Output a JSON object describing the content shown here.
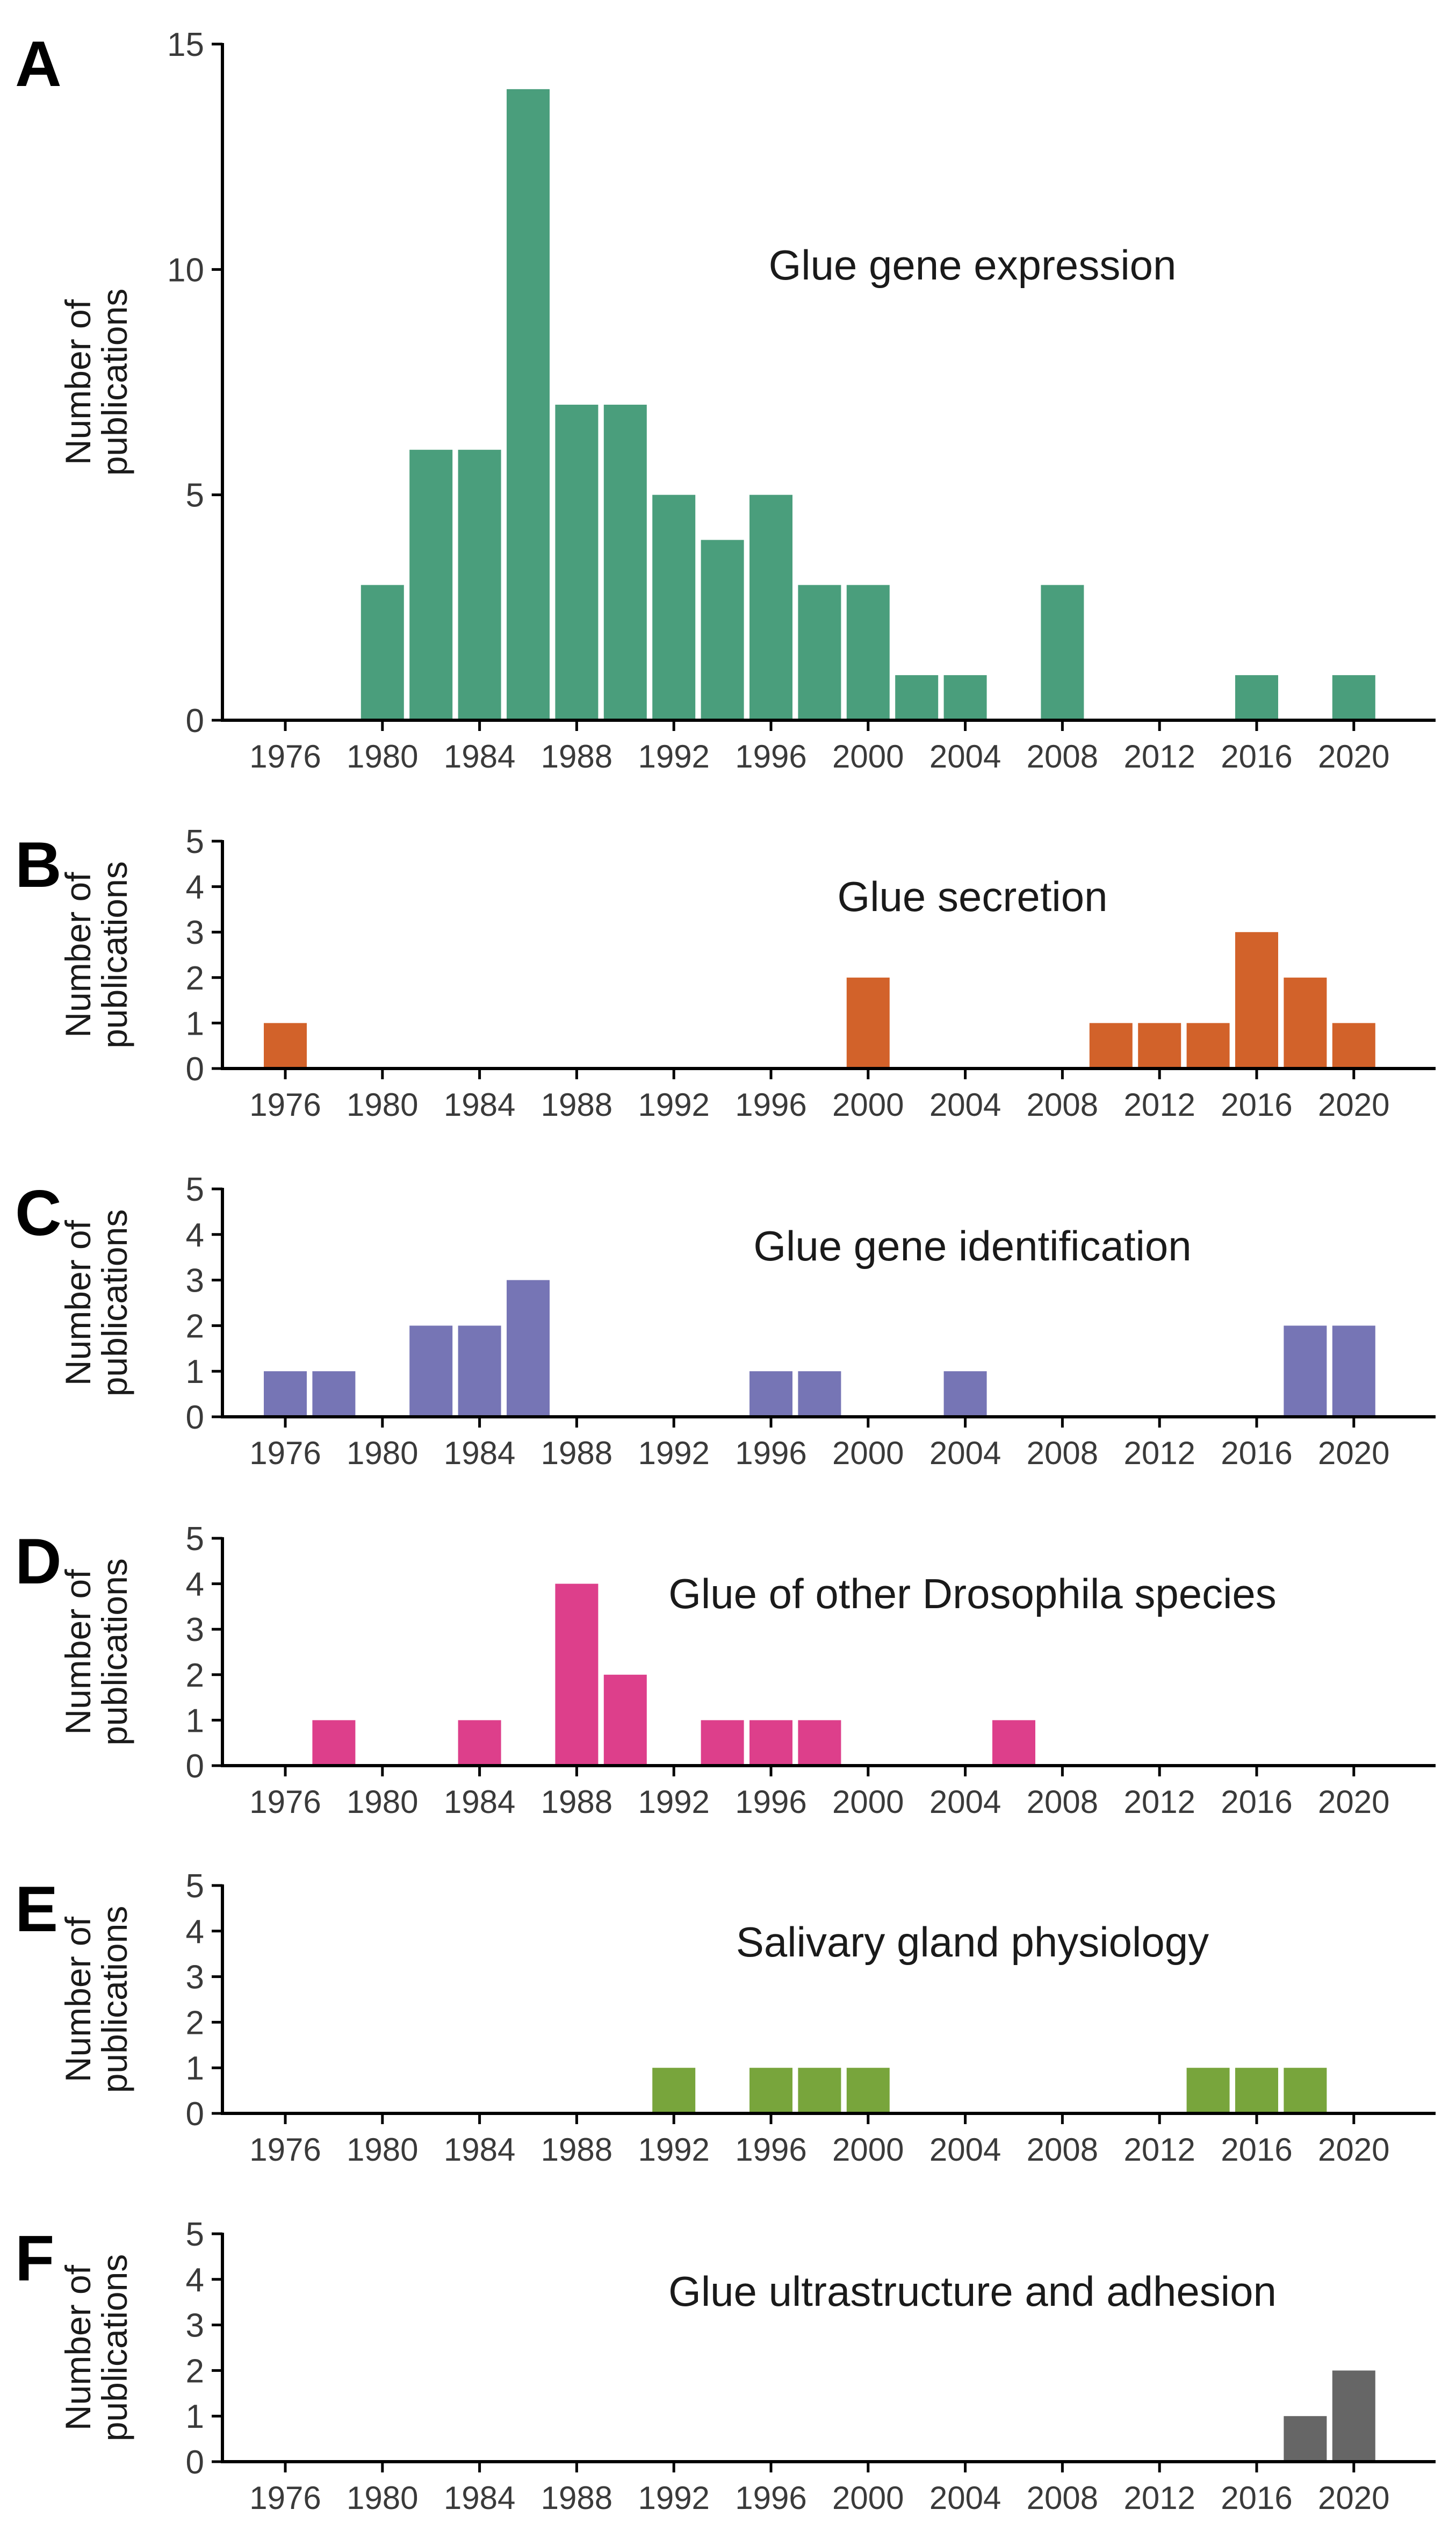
{
  "chart_data": [
    {
      "panel": "A",
      "type": "bar",
      "title": "Glue gene expression",
      "ylabel": [
        "Number of",
        "publications"
      ],
      "xlabel": "",
      "color": "#4a9e7c",
      "ylim": [
        0,
        15
      ],
      "yticks": [
        0,
        5,
        10,
        15
      ],
      "xticks": [
        1976,
        1980,
        1984,
        1988,
        1992,
        1996,
        2000,
        2004,
        2008,
        2012,
        2016,
        2020
      ],
      "x": [
        1980,
        1982,
        1984,
        1986,
        1988,
        1990,
        1992,
        1994,
        1996,
        1998,
        2000,
        2002,
        2004,
        2008,
        2016,
        2020
      ],
      "values": [
        3,
        6,
        6,
        14,
        7,
        7,
        5,
        4,
        5,
        3,
        3,
        1,
        1,
        3,
        1,
        1
      ]
    },
    {
      "panel": "B",
      "type": "bar",
      "title": "Glue secretion",
      "ylabel": [
        "Number of",
        "publications"
      ],
      "xlabel": "",
      "color": "#d2622a",
      "ylim": [
        0,
        5
      ],
      "yticks": [
        0,
        1,
        2,
        3,
        4,
        5
      ],
      "xticks": [
        1976,
        1980,
        1984,
        1988,
        1992,
        1996,
        2000,
        2004,
        2008,
        2012,
        2016,
        2020
      ],
      "x": [
        1976,
        2000,
        2010,
        2012,
        2014,
        2016,
        2018,
        2020
      ],
      "values": [
        1,
        2,
        1,
        1,
        1,
        3,
        2,
        1
      ]
    },
    {
      "panel": "C",
      "type": "bar",
      "title": "Glue gene identification",
      "ylabel": [
        "Number of",
        "publications"
      ],
      "xlabel": "",
      "color": "#7675b5",
      "ylim": [
        0,
        5
      ],
      "yticks": [
        0,
        1,
        2,
        3,
        4,
        5
      ],
      "xticks": [
        1976,
        1980,
        1984,
        1988,
        1992,
        1996,
        2000,
        2004,
        2008,
        2012,
        2016,
        2020
      ],
      "x": [
        1976,
        1978,
        1982,
        1984,
        1986,
        1996,
        1998,
        2004,
        2018,
        2020
      ],
      "values": [
        1,
        1,
        2,
        2,
        3,
        1,
        1,
        1,
        2,
        2
      ]
    },
    {
      "panel": "D",
      "type": "bar",
      "title": "Glue of other Drosophila species",
      "ylabel": [
        "Number of",
        "publications"
      ],
      "xlabel": "",
      "color": "#dd3f8b",
      "ylim": [
        0,
        5
      ],
      "yticks": [
        0,
        1,
        2,
        3,
        4,
        5
      ],
      "xticks": [
        1976,
        1980,
        1984,
        1988,
        1992,
        1996,
        2000,
        2004,
        2008,
        2012,
        2016,
        2020
      ],
      "x": [
        1978,
        1984,
        1988,
        1990,
        1994,
        1996,
        1998,
        2006
      ],
      "values": [
        1,
        1,
        4,
        2,
        1,
        1,
        1,
        1
      ]
    },
    {
      "panel": "E",
      "type": "bar",
      "title": "Salivary gland physiology",
      "ylabel": [
        "Number of",
        "publications"
      ],
      "xlabel": "",
      "color": "#78a53c",
      "ylim": [
        0,
        5
      ],
      "yticks": [
        0,
        1,
        2,
        3,
        4,
        5
      ],
      "xticks": [
        1976,
        1980,
        1984,
        1988,
        1992,
        1996,
        2000,
        2004,
        2008,
        2012,
        2016,
        2020
      ],
      "x": [
        1992,
        1996,
        1998,
        2000,
        2014,
        2016,
        2018
      ],
      "values": [
        1,
        1,
        1,
        1,
        1,
        1,
        1
      ]
    },
    {
      "panel": "F",
      "type": "bar",
      "title": "Glue ultrastructure and adhesion",
      "ylabel": [
        "Number of",
        "publications"
      ],
      "xlabel": "",
      "color": "#666666",
      "ylim": [
        0,
        5
      ],
      "yticks": [
        0,
        1,
        2,
        3,
        4,
        5
      ],
      "xticks": [
        1976,
        1980,
        1984,
        1988,
        1992,
        1996,
        2000,
        2004,
        2008,
        2012,
        2016,
        2020
      ],
      "x": [
        2018,
        2020
      ],
      "values": [
        1,
        2
      ]
    }
  ]
}
